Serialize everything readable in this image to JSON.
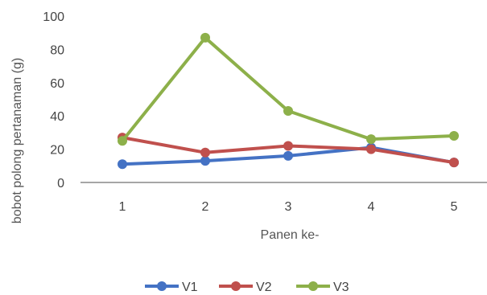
{
  "chart_data": {
    "type": "line",
    "title": "",
    "xlabel": "Panen ke-",
    "ylabel": "bobot polong pertanaman (g)",
    "categories": [
      "1",
      "2",
      "3",
      "4",
      "5"
    ],
    "y_ticks": [
      "0",
      "20",
      "40",
      "60",
      "80",
      "100"
    ],
    "ylim": [
      0,
      100
    ],
    "grid": false,
    "legend_position": "bottom",
    "series": [
      {
        "name": "V1",
        "color": "#4472c4",
        "values": [
          11,
          13,
          16,
          21,
          12
        ]
      },
      {
        "name": "V2",
        "color": "#c0504d",
        "values": [
          27,
          18,
          22,
          20,
          12
        ]
      },
      {
        "name": "V3",
        "color": "#8db04a",
        "values": [
          25,
          87,
          43,
          26,
          28
        ]
      }
    ]
  }
}
